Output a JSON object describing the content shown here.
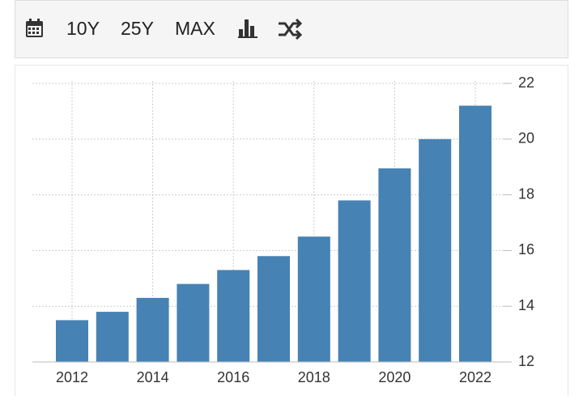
{
  "toolbar": {
    "buttons": [
      "10Y",
      "25Y",
      "MAX"
    ]
  },
  "chart_data": {
    "type": "bar",
    "categories": [
      "2012",
      null,
      "2014",
      null,
      "2016",
      null,
      "2018",
      null,
      "2020",
      null,
      "2022"
    ],
    "values": [
      13.5,
      13.8,
      14.3,
      14.8,
      15.3,
      15.8,
      16.5,
      17.8,
      18.95,
      20.0,
      21.2
    ],
    "color": "#4682b4",
    "ylim": [
      12,
      22
    ],
    "yticks": [
      12,
      14,
      16,
      18,
      20,
      22
    ],
    "grid": true
  }
}
